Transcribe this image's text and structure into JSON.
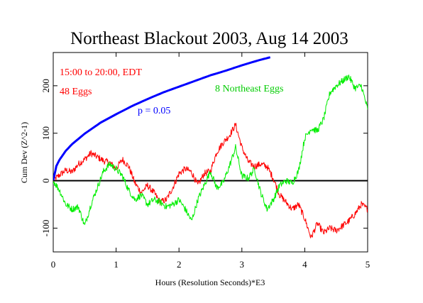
{
  "chart_data": {
    "type": "line",
    "title": "Northeast Blackout 2003, Aug 14 2003",
    "xlabel": "Hours (Resolution Seconds)*E3",
    "ylabel": "Cum Dev (Z^2-1)",
    "xlim": [
      0,
      5
    ],
    "ylim": [
      -150,
      270
    ],
    "x_ticks": [
      0,
      1,
      2,
      3,
      4,
      5
    ],
    "y_ticks": [
      -100,
      0,
      100,
      200
    ],
    "grid": false,
    "annotations": [
      {
        "text": "15:00 to 20:00, EDT",
        "color": "#ff0000"
      },
      {
        "text": "48 Eggs",
        "color": "#ff0000"
      },
      {
        "text": "8 Northeast Eggs",
        "color": "#00cc00"
      },
      {
        "text": "p = 0.05",
        "color": "#0000ff"
      }
    ],
    "series": [
      {
        "color": "#ff0000",
        "x": [
          0,
          0.1,
          0.2,
          0.3,
          0.4,
          0.5,
          0.6,
          0.7,
          0.8,
          0.9,
          1.0,
          1.1,
          1.2,
          1.3,
          1.4,
          1.5,
          1.6,
          1.7,
          1.8,
          1.9,
          2.0,
          2.1,
          2.2,
          2.3,
          2.4,
          2.5,
          2.6,
          2.7,
          2.8,
          2.9,
          3.0,
          3.1,
          3.2,
          3.3,
          3.4,
          3.5,
          3.6,
          3.7,
          3.8,
          3.9,
          4.0,
          4.1,
          4.2,
          4.3,
          4.4,
          4.5,
          4.6,
          4.7,
          4.8,
          4.9,
          5.0
        ],
        "values": [
          0,
          12,
          22,
          18,
          35,
          45,
          58,
          50,
          42,
          38,
          25,
          45,
          30,
          -5,
          -25,
          -10,
          -25,
          -45,
          -40,
          -15,
          15,
          25,
          18,
          -10,
          15,
          20,
          60,
          80,
          95,
          118,
          70,
          40,
          30,
          35,
          30,
          5,
          -30,
          -45,
          -60,
          -50,
          -80,
          -120,
          -90,
          -110,
          -100,
          -105,
          -95,
          -85,
          -70,
          -50,
          -60
        ]
      },
      {
        "color": "#00ee00",
        "x": [
          0,
          0.1,
          0.2,
          0.3,
          0.4,
          0.5,
          0.6,
          0.7,
          0.8,
          0.9,
          1.0,
          1.1,
          1.2,
          1.3,
          1.4,
          1.5,
          1.6,
          1.7,
          1.8,
          1.9,
          2.0,
          2.1,
          2.2,
          2.3,
          2.4,
          2.5,
          2.6,
          2.7,
          2.8,
          2.9,
          3.0,
          3.1,
          3.2,
          3.3,
          3.4,
          3.5,
          3.6,
          3.7,
          3.8,
          3.9,
          4.0,
          4.1,
          4.2,
          4.3,
          4.4,
          4.5,
          4.6,
          4.7,
          4.8,
          4.9,
          5.0
        ],
        "values": [
          0,
          -20,
          -50,
          -60,
          -55,
          -95,
          -50,
          -15,
          20,
          35,
          25,
          10,
          -20,
          -40,
          -30,
          -50,
          -40,
          -45,
          -55,
          -50,
          -40,
          -60,
          -85,
          -40,
          -10,
          20,
          -15,
          -5,
          30,
          70,
          10,
          5,
          25,
          -25,
          -60,
          -40,
          -10,
          0,
          -5,
          20,
          90,
          110,
          105,
          130,
          185,
          200,
          210,
          220,
          195,
          200,
          150
        ]
      },
      {
        "color": "#0000ff",
        "x": [
          0,
          0.05,
          0.1,
          0.2,
          0.3,
          0.5,
          0.75,
          1.0,
          1.25,
          1.5,
          1.75,
          2.0,
          2.25,
          2.5,
          2.75,
          3.0,
          3.25,
          3.45
        ],
        "values": [
          0,
          31,
          44,
          63,
          77,
          99,
          122,
          140,
          157,
          172,
          186,
          198,
          210,
          222,
          232,
          243,
          253,
          260
        ]
      }
    ]
  }
}
